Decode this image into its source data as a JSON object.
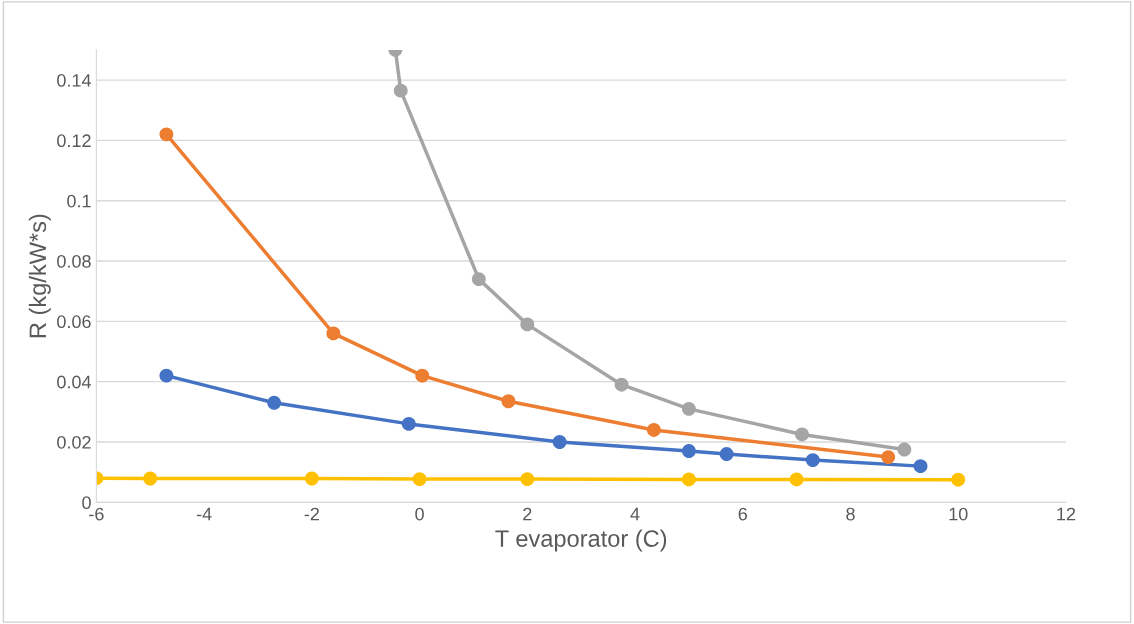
{
  "chart_data": {
    "type": "line",
    "xlabel": "T evaporator (C)",
    "ylabel": "R (kg/kW*s)",
    "xlim": [
      -6,
      12
    ],
    "xticks": [
      -6,
      -4,
      -2,
      0,
      2,
      4,
      6,
      8,
      10,
      12
    ],
    "ylim": [
      0,
      0.15
    ],
    "yticks": [
      0,
      0.02,
      0.04,
      0.06,
      0.08,
      0.1,
      0.12,
      0.14
    ],
    "grid": "y",
    "marker": "circle",
    "line_style": "solid",
    "legend": false,
    "series": [
      {
        "color": "#4472c4",
        "x": [
          -4.7,
          -2.7,
          -0.2,
          2.6,
          5.0,
          5.7,
          7.3,
          9.3
        ],
        "values": [
          0.042,
          0.033,
          0.026,
          0.02,
          0.017,
          0.016,
          0.014,
          0.012
        ]
      },
      {
        "color": "#ed7d31",
        "x": [
          -4.7,
          -1.6,
          0.05,
          1.65,
          4.35,
          8.7
        ],
        "values": [
          0.122,
          0.056,
          0.042,
          0.0335,
          0.024,
          0.015
        ]
      },
      {
        "color": "#a5a5a5",
        "x": [
          -0.45,
          -0.35,
          1.1,
          2.0,
          3.75,
          5.0,
          7.1,
          9.0
        ],
        "values": [
          0.15,
          0.1365,
          0.074,
          0.059,
          0.039,
          0.031,
          0.0225,
          0.0175
        ]
      },
      {
        "color": "#ffc000",
        "x": [
          -6,
          -5,
          -2,
          0,
          2,
          5,
          7,
          10
        ],
        "values": [
          0.008,
          0.0079,
          0.0079,
          0.0077,
          0.0077,
          0.0076,
          0.0076,
          0.0075
        ]
      }
    ]
  }
}
